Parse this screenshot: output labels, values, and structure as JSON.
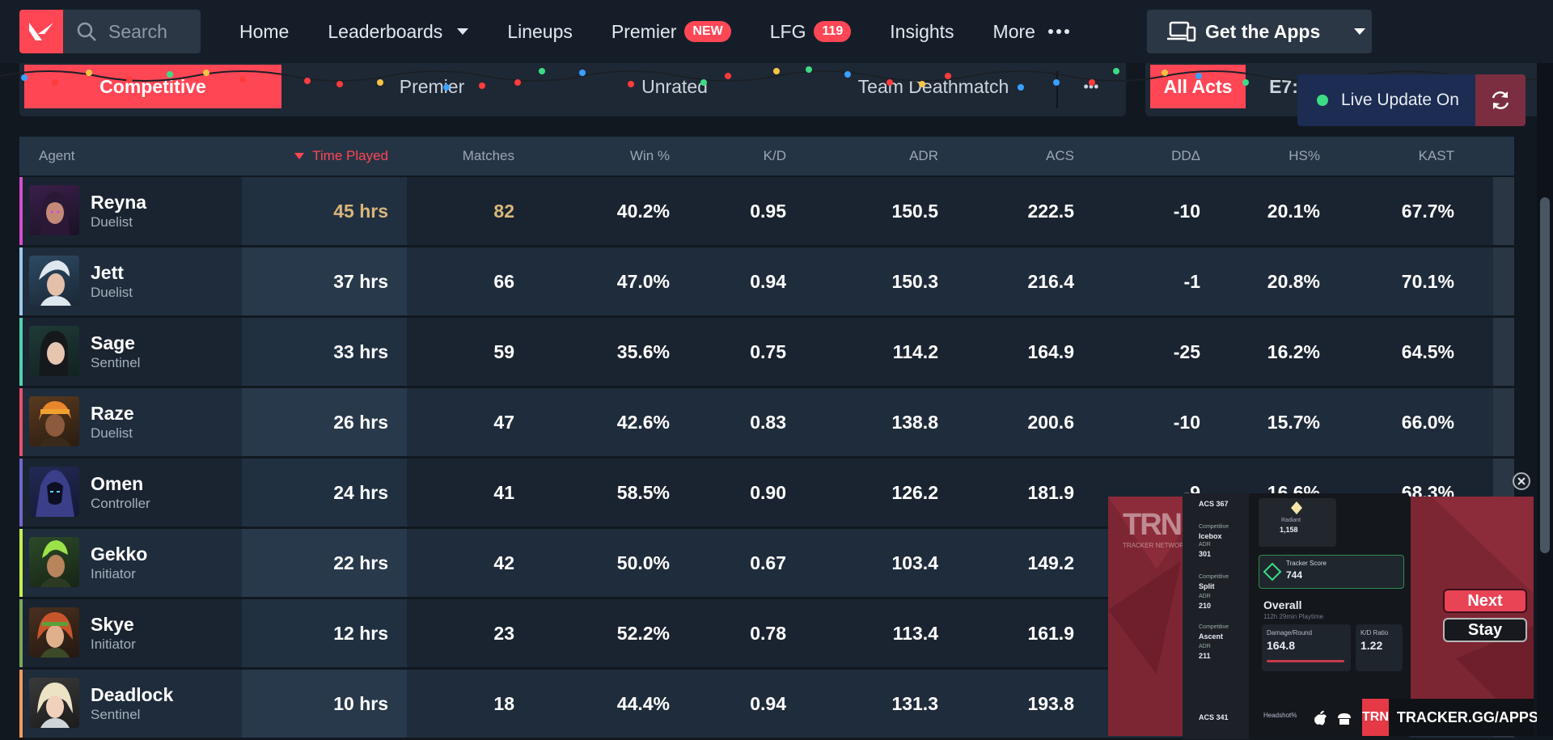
{
  "nav": {
    "search_placeholder": "Search",
    "links": {
      "home": "Home",
      "leaderboards": "Leaderboards",
      "lineups": "Lineups",
      "premier": "Premier",
      "premier_badge": "NEW",
      "lfg": "LFG",
      "lfg_count": "119",
      "insights": "Insights",
      "more": "More"
    },
    "get_apps": "Get the Apps"
  },
  "modes": {
    "competitive": "Competitive",
    "premier": "Premier",
    "unrated": "Unrated",
    "team_deathmatch": "Team Deathmatch",
    "more": "•••"
  },
  "acts": {
    "all_acts": "All Acts",
    "e7": "E7:"
  },
  "live_update": "Live Update On",
  "table": {
    "headers": {
      "agent": "Agent",
      "time_played": "Time Played",
      "matches": "Matches",
      "win": "Win %",
      "kd": "K/D",
      "adr": "ADR",
      "acs": "ACS",
      "dd": "DDΔ",
      "hs": "HS%",
      "kast": "KAST"
    },
    "rows": [
      {
        "agent": "Reyna",
        "role": "Duelist",
        "time": "45 hrs",
        "matches": "82",
        "win": "40.2%",
        "kd": "0.95",
        "adr": "150.5",
        "acs": "222.5",
        "dd": "-10",
        "hs": "20.1%",
        "kast": "67.7%"
      },
      {
        "agent": "Jett",
        "role": "Duelist",
        "time": "37 hrs",
        "matches": "66",
        "win": "47.0%",
        "kd": "0.94",
        "adr": "150.3",
        "acs": "216.4",
        "dd": "-1",
        "hs": "20.8%",
        "kast": "70.1%"
      },
      {
        "agent": "Sage",
        "role": "Sentinel",
        "time": "33 hrs",
        "matches": "59",
        "win": "35.6%",
        "kd": "0.75",
        "adr": "114.2",
        "acs": "164.9",
        "dd": "-25",
        "hs": "16.2%",
        "kast": "64.5%"
      },
      {
        "agent": "Raze",
        "role": "Duelist",
        "time": "26 hrs",
        "matches": "47",
        "win": "42.6%",
        "kd": "0.83",
        "adr": "138.8",
        "acs": "200.6",
        "dd": "-10",
        "hs": "15.7%",
        "kast": "66.0%"
      },
      {
        "agent": "Omen",
        "role": "Controller",
        "time": "24 hrs",
        "matches": "41",
        "win": "58.5%",
        "kd": "0.90",
        "adr": "126.2",
        "acs": "181.9",
        "dd": "-9",
        "hs": "16.6%",
        "kast": "68.3%"
      },
      {
        "agent": "Gekko",
        "role": "Initiator",
        "time": "22 hrs",
        "matches": "42",
        "win": "50.0%",
        "kd": "0.67",
        "adr": "103.4",
        "acs": "149.2",
        "dd": "",
        "hs": "",
        "kast": ""
      },
      {
        "agent": "Skye",
        "role": "Initiator",
        "time": "12 hrs",
        "matches": "23",
        "win": "52.2%",
        "kd": "0.78",
        "adr": "113.4",
        "acs": "161.9",
        "dd": "",
        "hs": "",
        "kast": ""
      },
      {
        "agent": "Deadlock",
        "role": "Sentinel",
        "time": "10 hrs",
        "matches": "18",
        "win": "44.4%",
        "kd": "0.94",
        "adr": "131.3",
        "acs": "193.8",
        "dd": "",
        "hs": "",
        "kast": ""
      }
    ]
  },
  "ad": {
    "logo": "TRN",
    "logo_sub": "TRACKER NETWORK",
    "next": "Next",
    "stay": "Stay",
    "banner_logo": "TRN",
    "banner_url": "TRACKER.GG/APPS",
    "phone": {
      "acs_top": "ACS 367",
      "map1_mode": "Competitive",
      "map1": "Icebox",
      "map1_adr_label": "ADR",
      "map1_adr": "301",
      "map2_mode": "Competitive",
      "map2": "Split",
      "map2_adr_label": "ADR",
      "map2_adr": "210",
      "map3_mode": "Competitive",
      "map3": "Ascent",
      "map3_adr_label": "ADR",
      "map3_adr": "211",
      "acs_bottom": "ACS 341",
      "rank": "Radiant",
      "rank_rr": "1,158",
      "tracker_score_label": "Tracker Score",
      "tracker_score": "744",
      "overall": "Overall",
      "playtime": "112h 29min Playtime",
      "dmg_label": "Damage/Round",
      "dmg": "164.8",
      "kd_label": "K/D Ratio",
      "kd": "1.22",
      "hs_label": "Headshot%"
    }
  },
  "colors": {
    "accent": "#ff4655",
    "reyna": "#d84bd0",
    "jett": "#9cc9ec",
    "sage": "#4fd2b2",
    "raze": "#e8506a",
    "omen": "#6e66c9",
    "gekko": "#c6f04b",
    "skye": "#7aa858",
    "deadlock": "#f39b5a"
  }
}
